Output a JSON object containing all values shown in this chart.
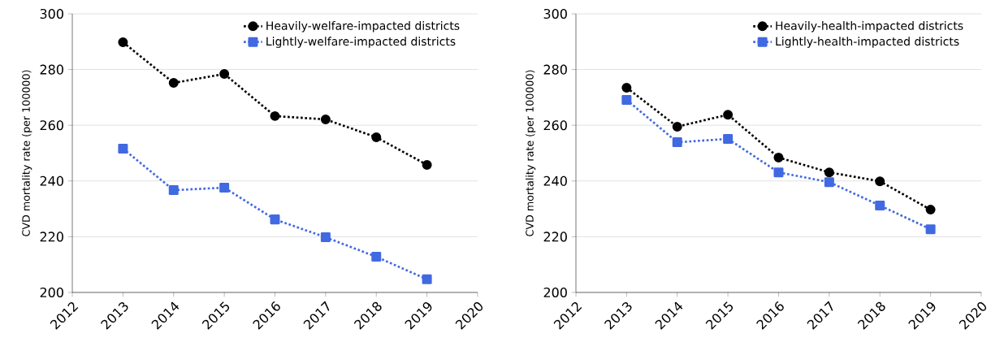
{
  "chart_data": [
    {
      "type": "line",
      "ylabel": "CVD mortality rate (per 100000)",
      "x": [
        2013,
        2014,
        2015,
        2016,
        2017,
        2018,
        2019
      ],
      "series": [
        {
          "name": "Heavily-welfare-impacted districts",
          "color": "#000000",
          "marker": "circle",
          "values": [
            289.8,
            275.2,
            278.4,
            263.3,
            262.1,
            255.7,
            245.8
          ]
        },
        {
          "name": "Lightly-welfare-impacted districts",
          "color": "#4169e1",
          "marker": "square",
          "values": [
            251.6,
            236.7,
            237.6,
            226.2,
            219.8,
            212.8,
            204.7
          ]
        }
      ],
      "xlim": [
        2012,
        2020
      ],
      "ylim": [
        200,
        300
      ],
      "xticks": [
        2012,
        2013,
        2014,
        2015,
        2016,
        2017,
        2018,
        2019,
        2020
      ],
      "yticks": [
        200,
        220,
        240,
        260,
        280,
        300
      ],
      "grid": "y",
      "legend": "top right",
      "line_style": "dotted"
    },
    {
      "type": "line",
      "ylabel": "CVD mortality rate (per 100000)",
      "x": [
        2013,
        2014,
        2015,
        2016,
        2017,
        2018,
        2019
      ],
      "series": [
        {
          "name": "Heavily-health-impacted districts",
          "color": "#000000",
          "marker": "circle",
          "values": [
            273.5,
            259.5,
            263.8,
            248.4,
            243.1,
            239.9,
            229.7
          ]
        },
        {
          "name": "Lightly-health-impacted districts",
          "color": "#4169e1",
          "marker": "square",
          "values": [
            269.1,
            253.9,
            255.1,
            243.1,
            239.6,
            231.2,
            222.7
          ]
        }
      ],
      "xlim": [
        2012,
        2020
      ],
      "ylim": [
        200,
        300
      ],
      "xticks": [
        2012,
        2013,
        2014,
        2015,
        2016,
        2017,
        2018,
        2019,
        2020
      ],
      "yticks": [
        200,
        220,
        240,
        260,
        280,
        300
      ],
      "grid": "y",
      "legend": "top right",
      "line_style": "dotted"
    }
  ]
}
